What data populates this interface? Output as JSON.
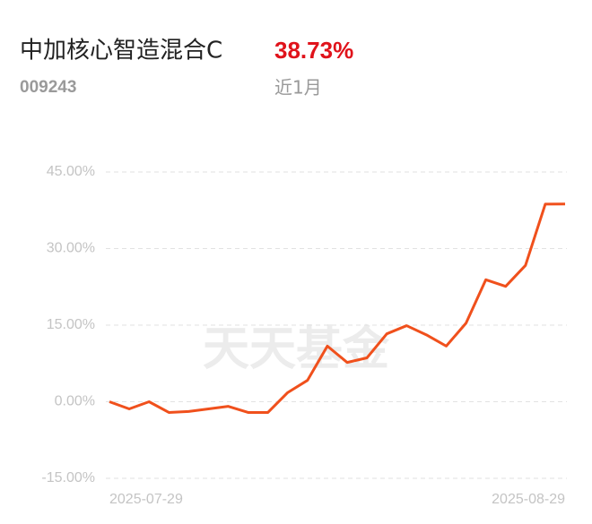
{
  "header": {
    "title": "中加核心智造混合C",
    "return": "38.73%",
    "code": "009243",
    "period": "近1月"
  },
  "watermark": "天天基金",
  "chart_data": {
    "type": "line",
    "categories": [
      "2025-07-29",
      null,
      null,
      null,
      null,
      null,
      null,
      null,
      null,
      null,
      null,
      null,
      null,
      null,
      null,
      null,
      null,
      null,
      null,
      null,
      null,
      null,
      null,
      "2025-08-29"
    ],
    "series": [
      {
        "name": "中加核心智造混合C",
        "color": "#f0501c",
        "values": [
          0,
          -1.4,
          0,
          -2.1,
          -1.9,
          -1.4,
          -0.9,
          -2.1,
          -2.1,
          1.8,
          4.2,
          10.9,
          7.7,
          8.6,
          13.3,
          14.9,
          13.1,
          10.9,
          15.4,
          23.9,
          22.6,
          26.7,
          38.7,
          38.73
        ]
      }
    ],
    "ylim": [
      -15,
      45
    ],
    "yticks": [
      {
        "value": 45,
        "label": "45.00%"
      },
      {
        "value": 30,
        "label": "30.00%"
      },
      {
        "value": 15,
        "label": "15.00%"
      },
      {
        "value": 0,
        "label": "0.00%"
      },
      {
        "value": -15,
        "label": "-15.00%"
      }
    ],
    "grid": true
  }
}
